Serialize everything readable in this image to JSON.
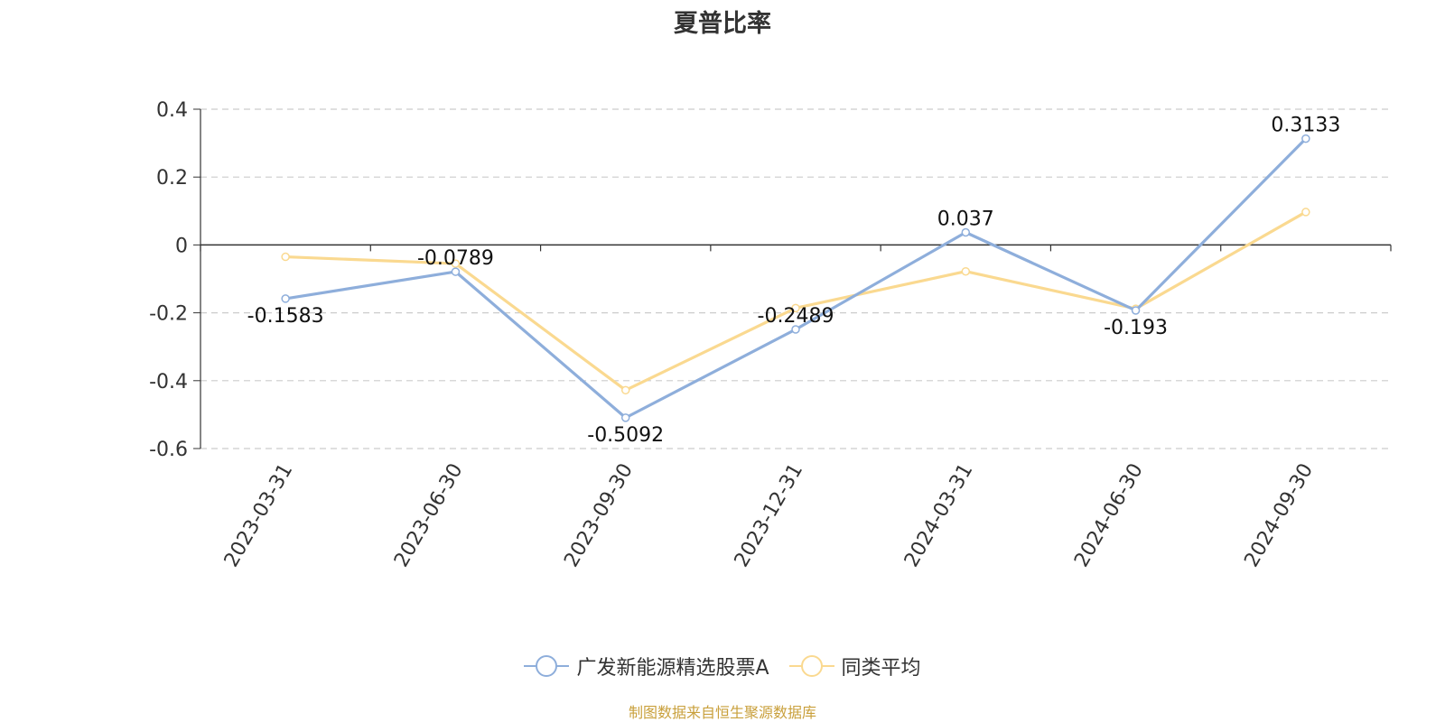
{
  "chart_data": {
    "type": "line",
    "title": "夏普比率",
    "categories": [
      "2023-03-31",
      "2023-06-30",
      "2023-09-30",
      "2023-12-31",
      "2024-03-31",
      "2024-06-30",
      "2024-09-30"
    ],
    "ylim": [
      -0.6,
      0.4
    ],
    "yticks": [
      "0.4",
      "0.2",
      "0",
      "-0.2",
      "-0.4",
      "-0.6"
    ],
    "grid": true,
    "legend_position": "bottom-center",
    "series": [
      {
        "name": "广发新能源精选股票A",
        "color": "#8eaedb",
        "values": [
          -0.1583,
          -0.0789,
          -0.5092,
          -0.2489,
          0.037,
          -0.193,
          0.3133
        ],
        "labels": [
          "-0.1583",
          "-0.0789",
          "-0.5092",
          "-0.2489",
          "0.037",
          "-0.193",
          "0.3133"
        ]
      },
      {
        "name": "同类平均",
        "color": "#fad990",
        "values": [
          -0.035,
          -0.055,
          -0.428,
          -0.186,
          -0.078,
          -0.188,
          0.097
        ]
      }
    ]
  },
  "source_text": "制图数据来自恒生聚源数据库"
}
